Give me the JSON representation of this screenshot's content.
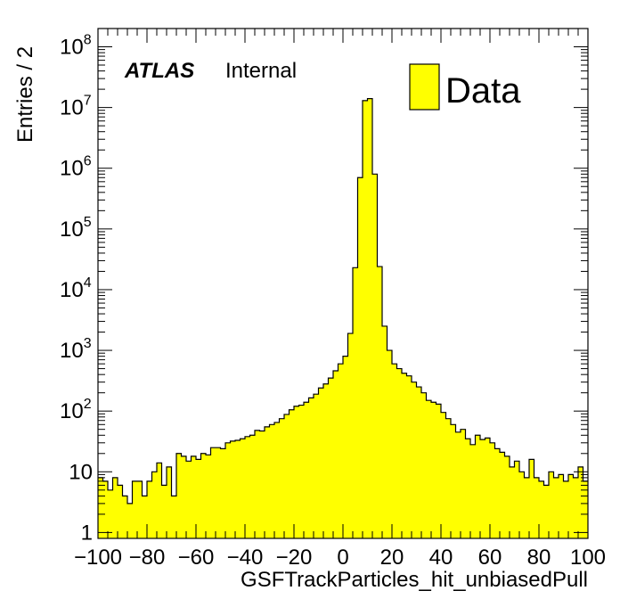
{
  "chart_data": {
    "type": "bar",
    "style": "histogram-step",
    "title": "",
    "xlabel": "GSFTrackParticles_hit_unbiasedPull",
    "ylabel": "Entries / 2",
    "xlim": [
      -100,
      100
    ],
    "ylim": [
      0.8,
      200000000
    ],
    "yscale": "log",
    "bin_width": 2,
    "fill_color": "#ffff00",
    "line_color": "#000000",
    "x_ticks": [
      -100,
      -80,
      -60,
      -40,
      -20,
      0,
      20,
      40,
      60,
      80,
      100
    ],
    "x_tick_labels": [
      "−100",
      "−80",
      "−60",
      "−40",
      "−20",
      "0",
      "20",
      "40",
      "60",
      "80",
      "100"
    ],
    "y_ticks": [
      {
        "value": 1,
        "label": "1"
      },
      {
        "value": 10,
        "label": "10"
      },
      {
        "value": 100,
        "base": "10",
        "exp": "2"
      },
      {
        "value": 1000,
        "base": "10",
        "exp": "3"
      },
      {
        "value": 10000,
        "base": "10",
        "exp": "4"
      },
      {
        "value": 100000,
        "base": "10",
        "exp": "5"
      },
      {
        "value": 1000000,
        "base": "10",
        "exp": "6"
      },
      {
        "value": 10000000,
        "base": "10",
        "exp": "7"
      },
      {
        "value": 100000000,
        "base": "10",
        "exp": "8"
      }
    ],
    "atlas_label": "ATLAS",
    "atlas_sublabel": "Internal",
    "legend": {
      "position": "top-right",
      "entries": [
        {
          "label": "Data",
          "color": "#ffff00"
        }
      ]
    },
    "series": [
      {
        "name": "Data",
        "bin_edges_start": -100,
        "values": [
          8,
          7,
          5,
          8,
          6,
          4,
          3,
          7,
          7,
          4,
          7,
          10,
          14,
          6,
          12,
          4,
          20,
          18,
          15,
          18,
          16,
          20,
          19,
          25,
          25,
          24,
          30,
          32,
          33,
          35,
          38,
          40,
          48,
          47,
          55,
          60,
          65,
          75,
          88,
          105,
          120,
          125,
          140,
          165,
          190,
          240,
          280,
          350,
          460,
          600,
          800,
          1900,
          23000,
          700000,
          13000000,
          14000000,
          800000,
          24000,
          2500,
          1000,
          600,
          500,
          420,
          380,
          300,
          250,
          200,
          150,
          140,
          130,
          95,
          75,
          60,
          45,
          50,
          35,
          28,
          40,
          34,
          36,
          30,
          24,
          21,
          18,
          12,
          15,
          10,
          8,
          16,
          8,
          7,
          6,
          10,
          8,
          9,
          7,
          9,
          8,
          12,
          7
        ]
      }
    ]
  }
}
